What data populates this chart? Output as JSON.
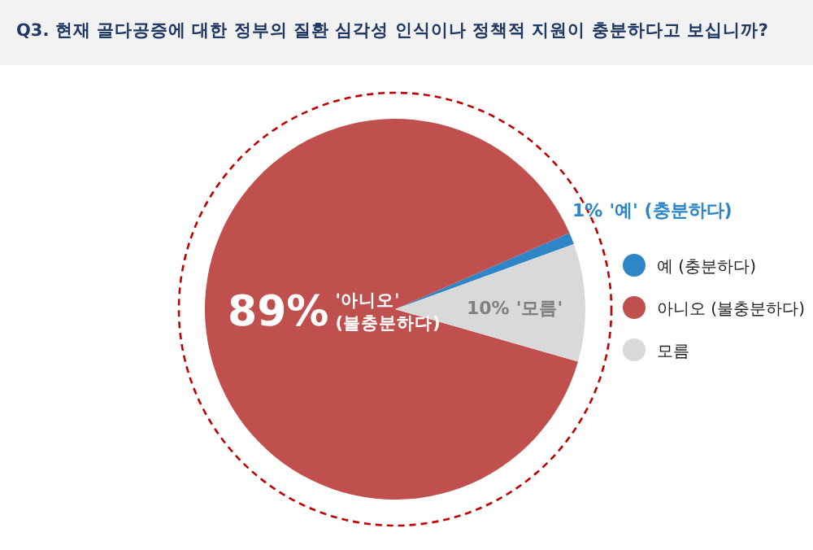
{
  "chart_data": {
    "type": "pie",
    "title": "Q3. 현재 골다공증에 대한 정부의 질환 심각성 인식이나 정책적 지원이 충분하다고 보십니까?",
    "categories": [
      "예 (충분하다)",
      "아니오 (불충분하다)",
      "모름"
    ],
    "values": [
      1,
      89,
      10
    ],
    "colors": [
      "#2e86c8",
      "#c0504d",
      "#d9d9d9"
    ],
    "value_labels": [
      "1%",
      "89%",
      "10%"
    ],
    "annotations": [
      "'예' (충분하다)",
      "'아니오' (불충분하다)",
      "'모름'"
    ],
    "legend": "right"
  }
}
